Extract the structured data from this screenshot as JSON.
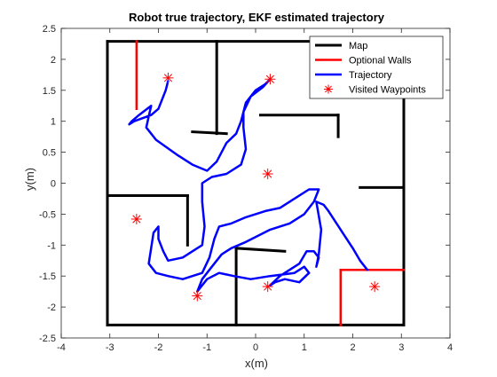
{
  "chart_data": {
    "type": "line",
    "title": "Robot true trajectory, EKF estimated trajectory",
    "xlabel": "x(m)",
    "ylabel": "y(m)",
    "xlim": [
      -4,
      4
    ],
    "ylim": [
      -2.5,
      2.5
    ],
    "xticks": [
      -4,
      -3,
      -2,
      -1,
      0,
      1,
      2,
      3,
      4
    ],
    "yticks": [
      -2.5,
      -2,
      -1.5,
      -1,
      -0.5,
      0,
      0.5,
      1,
      1.5,
      2,
      2.5
    ],
    "xtick_labels": [
      "-4",
      "-3",
      "-2",
      "-1",
      "0",
      "1",
      "2",
      "3",
      "4"
    ],
    "ytick_labels": [
      "-2.5",
      "-2",
      "-1.5",
      "-1",
      "-0.5",
      "0",
      "0.5",
      "1",
      "1.5",
      "2",
      "2.5"
    ],
    "grid": false,
    "legend_position": "top-right",
    "legend": [
      {
        "label": "Map",
        "color": "#000000",
        "kind": "line"
      },
      {
        "label": "Optional Walls",
        "color": "#ff0000",
        "kind": "line"
      },
      {
        "label": "Trajectory",
        "color": "#0000ff",
        "kind": "line"
      },
      {
        "label": "Visited Waypoints",
        "color": "#ff0000",
        "kind": "star"
      }
    ],
    "map_walls": [
      [
        [
          -3.05,
          2.29
        ],
        [
          3.05,
          2.29
        ]
      ],
      [
        [
          3.05,
          2.29
        ],
        [
          3.05,
          -2.29
        ]
      ],
      [
        [
          3.05,
          -2.29
        ],
        [
          -3.05,
          -2.29
        ]
      ],
      [
        [
          -3.05,
          -2.29
        ],
        [
          -3.05,
          2.29
        ]
      ],
      [
        [
          -0.8,
          2.29
        ],
        [
          -0.8,
          0.8
        ]
      ],
      [
        [
          -1.3,
          0.83
        ],
        [
          -0.6,
          0.8
        ]
      ],
      [
        [
          0.1,
          1.1
        ],
        [
          1.7,
          1.1
        ]
      ],
      [
        [
          1.7,
          1.1
        ],
        [
          1.7,
          0.75
        ]
      ],
      [
        [
          -3.05,
          -0.2
        ],
        [
          -2.6,
          -0.2
        ]
      ],
      [
        [
          -2.6,
          -0.2
        ],
        [
          -1.4,
          -0.2
        ]
      ],
      [
        [
          -1.4,
          -0.2
        ],
        [
          -1.4,
          -1.0
        ]
      ],
      [
        [
          -0.4,
          -1.05
        ],
        [
          -0.4,
          -2.29
        ]
      ],
      [
        [
          -0.4,
          -1.05
        ],
        [
          0.6,
          -1.1
        ]
      ],
      [
        [
          2.15,
          -0.07
        ],
        [
          3.05,
          -0.07
        ]
      ]
    ],
    "optional_walls": [
      [
        [
          -2.45,
          2.29
        ],
        [
          -2.45,
          1.2
        ]
      ],
      [
        [
          1.75,
          -2.29
        ],
        [
          1.75,
          -1.4
        ]
      ],
      [
        [
          1.75,
          -1.4
        ],
        [
          3.05,
          -1.4
        ]
      ]
    ],
    "trajectory": [
      [
        -1.8,
        1.65
      ],
      [
        -1.85,
        1.5
      ],
      [
        -1.95,
        1.3
      ],
      [
        -2.0,
        1.2
      ],
      [
        -2.15,
        1.1
      ],
      [
        -2.5,
        1.0
      ],
      [
        -2.6,
        0.95
      ],
      [
        -2.55,
        1.0
      ],
      [
        -2.4,
        1.1
      ],
      [
        -2.15,
        1.25
      ],
      [
        -2.25,
        0.9
      ],
      [
        -2.05,
        0.7
      ],
      [
        -1.6,
        0.45
      ],
      [
        -1.3,
        0.3
      ],
      [
        -1.0,
        0.2
      ],
      [
        -0.8,
        0.35
      ],
      [
        -0.6,
        0.65
      ],
      [
        -0.4,
        0.8
      ],
      [
        -0.3,
        1.0
      ],
      [
        -0.2,
        1.3
      ],
      [
        0.0,
        1.5
      ],
      [
        0.2,
        1.6
      ],
      [
        0.3,
        1.68
      ],
      [
        0.15,
        1.55
      ],
      [
        -0.1,
        1.4
      ],
      [
        -0.25,
        1.15
      ],
      [
        -0.25,
        0.9
      ],
      [
        -0.2,
        0.55
      ],
      [
        -0.3,
        0.3
      ],
      [
        -0.6,
        0.15
      ],
      [
        -0.9,
        0.1
      ],
      [
        -1.1,
        0.0
      ],
      [
        -1.1,
        -0.3
      ],
      [
        -1.05,
        -0.7
      ],
      [
        -1.1,
        -1.0
      ],
      [
        -1.3,
        -1.1
      ],
      [
        -1.5,
        -1.2
      ],
      [
        -1.8,
        -1.25
      ],
      [
        -1.9,
        -1.1
      ],
      [
        -2.0,
        -0.9
      ],
      [
        -2.0,
        -0.7
      ],
      [
        -2.1,
        -0.8
      ],
      [
        -2.2,
        -1.3
      ],
      [
        -2.05,
        -1.45
      ],
      [
        -1.8,
        -1.5
      ],
      [
        -1.5,
        -1.55
      ],
      [
        -1.3,
        -1.5
      ],
      [
        -1.1,
        -1.45
      ],
      [
        -0.95,
        -1.2
      ],
      [
        -0.85,
        -0.9
      ],
      [
        -0.75,
        -0.7
      ],
      [
        -0.5,
        -0.65
      ],
      [
        -0.2,
        -0.55
      ],
      [
        0.2,
        -0.45
      ],
      [
        0.5,
        -0.4
      ],
      [
        0.8,
        -0.25
      ],
      [
        1.1,
        -0.1
      ],
      [
        1.3,
        -0.1
      ],
      [
        1.2,
        -0.3
      ],
      [
        1.0,
        -0.5
      ],
      [
        0.7,
        -0.65
      ],
      [
        0.3,
        -0.75
      ],
      [
        -0.2,
        -0.95
      ],
      [
        -0.5,
        -1.05
      ],
      [
        -0.7,
        -1.15
      ],
      [
        -0.9,
        -1.35
      ],
      [
        -1.1,
        -1.55
      ],
      [
        -1.2,
        -1.75
      ],
      [
        -1.0,
        -1.55
      ],
      [
        -0.75,
        -1.45
      ],
      [
        -0.45,
        -1.5
      ],
      [
        -0.1,
        -1.55
      ],
      [
        0.3,
        -1.5
      ],
      [
        0.8,
        -1.45
      ],
      [
        1.0,
        -1.35
      ],
      [
        1.1,
        -1.45
      ],
      [
        0.9,
        -1.6
      ],
      [
        0.6,
        -1.55
      ],
      [
        0.4,
        -1.6
      ],
      [
        0.3,
        -1.65
      ],
      [
        0.5,
        -1.5
      ],
      [
        0.9,
        -1.3
      ],
      [
        1.05,
        -1.1
      ],
      [
        1.2,
        -1.1
      ],
      [
        1.3,
        -1.2
      ],
      [
        1.25,
        -1.35
      ],
      [
        1.3,
        -1.15
      ],
      [
        1.35,
        -0.75
      ],
      [
        1.25,
        -0.3
      ],
      [
        1.4,
        -0.35
      ],
      [
        1.5,
        -0.45
      ],
      [
        1.75,
        -0.75
      ],
      [
        2.0,
        -1.05
      ],
      [
        2.15,
        -1.25
      ],
      [
        2.3,
        -1.4
      ]
    ],
    "waypoints": [
      [
        -1.8,
        1.7
      ],
      [
        0.3,
        1.68
      ],
      [
        0.25,
        0.15
      ],
      [
        -2.45,
        -0.58
      ],
      [
        -1.2,
        -1.82
      ],
      [
        0.25,
        -1.67
      ],
      [
        2.45,
        -1.67
      ]
    ]
  },
  "colors": {
    "map": "#000000",
    "optional": "#ff0000",
    "trajectory": "#0000ff",
    "waypoint": "#ff0000",
    "axes": "#262626"
  }
}
